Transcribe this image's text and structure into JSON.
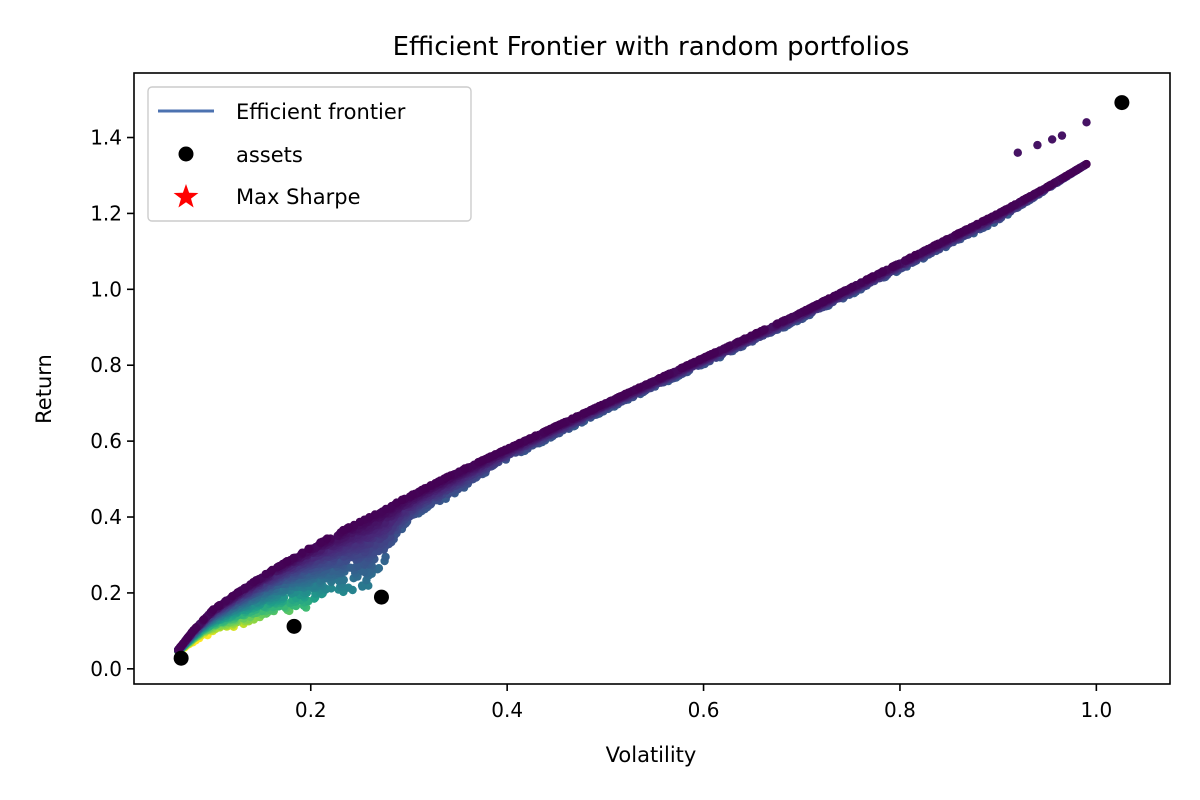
{
  "chart_data": {
    "type": "scatter",
    "title": "Efficient Frontier with random portfolios",
    "xlabel": "Volatility",
    "ylabel": "Return",
    "xlim": [
      0.02,
      1.075
    ],
    "ylim": [
      -0.04,
      1.57
    ],
    "xticks": [
      "0.2",
      "0.4",
      "0.6",
      "0.8",
      "1.0"
    ],
    "yticks": [
      "0.0",
      "0.2",
      "0.4",
      "0.6",
      "0.8",
      "1.0",
      "1.2",
      "1.4"
    ],
    "xtick_values": [
      0.2,
      0.4,
      0.6,
      0.8,
      1.0
    ],
    "ytick_values": [
      0.0,
      0.2,
      0.4,
      0.6,
      0.8,
      1.0,
      1.2,
      1.4
    ],
    "grid": false,
    "legend_position": "top-left",
    "legend": [
      {
        "label": "Efficient frontier",
        "marker": "line",
        "color": "#4c72b0"
      },
      {
        "label": "assets",
        "marker": "circle",
        "color": "#000000"
      },
      {
        "label": "Max Sharpe",
        "marker": "star",
        "color": "#ff0000"
      }
    ],
    "assets": [
      {
        "x": 0.068,
        "y": 0.028
      },
      {
        "x": 0.183,
        "y": 0.112
      },
      {
        "x": 0.272,
        "y": 0.189
      },
      {
        "x": 1.026,
        "y": 1.492
      }
    ],
    "random_portfolios": {
      "colormap": "viridis",
      "color_meaning": "low Sharpe = purple, high Sharpe = yellow",
      "upper_envelope": [
        [
          0.065,
          0.05
        ],
        [
          0.08,
          0.1
        ],
        [
          0.1,
          0.155
        ],
        [
          0.13,
          0.21
        ],
        [
          0.16,
          0.26
        ],
        [
          0.2,
          0.32
        ],
        [
          0.25,
          0.39
        ],
        [
          0.3,
          0.455
        ],
        [
          0.35,
          0.52
        ],
        [
          0.4,
          0.58
        ],
        [
          0.5,
          0.7
        ],
        [
          0.6,
          0.82
        ],
        [
          0.7,
          0.94
        ],
        [
          0.8,
          1.07
        ],
        [
          0.9,
          1.2
        ],
        [
          0.95,
          1.27
        ],
        [
          0.99,
          1.33
        ]
      ],
      "lower_boundary": [
        [
          0.065,
          0.045
        ],
        [
          0.09,
          0.085
        ],
        [
          0.13,
          0.11
        ],
        [
          0.18,
          0.15
        ],
        [
          0.22,
          0.175
        ],
        [
          0.255,
          0.2
        ],
        [
          0.275,
          0.27
        ],
        [
          0.29,
          0.36
        ],
        [
          0.31,
          0.41
        ],
        [
          0.34,
          0.45
        ],
        [
          0.4,
          0.55
        ],
        [
          0.5,
          0.68
        ],
        [
          0.6,
          0.8
        ],
        [
          0.7,
          0.92
        ],
        [
          0.8,
          1.05
        ],
        [
          0.9,
          1.18
        ],
        [
          0.99,
          1.33
        ]
      ],
      "tail_points": [
        [
          0.92,
          1.36
        ],
        [
          0.94,
          1.38
        ],
        [
          0.955,
          1.395
        ],
        [
          0.965,
          1.405
        ],
        [
          0.99,
          1.44
        ]
      ]
    }
  }
}
